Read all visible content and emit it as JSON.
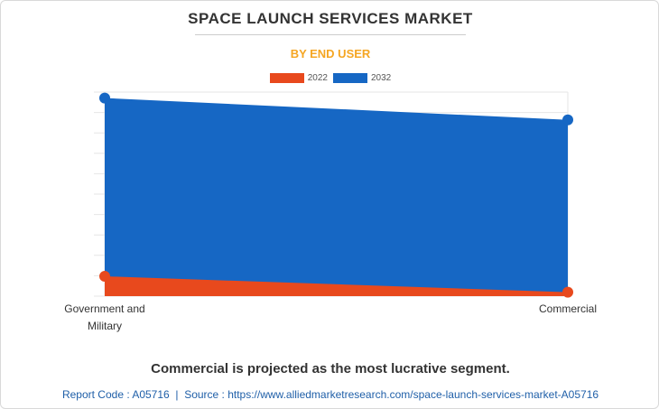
{
  "header": {
    "title": "SPACE LAUNCH SERVICES MARKET",
    "subtitle": "BY END USER"
  },
  "colors": {
    "series_2022": "#e8491d",
    "series_2032": "#1667c4",
    "subtitle": "#f5a623",
    "grid": "#e6e6e6"
  },
  "chart_data": {
    "type": "area",
    "title": "SPACE LAUNCH SERVICES MARKET",
    "subtitle": "BY END USER",
    "categories": [
      "Government and Military",
      "Commercial"
    ],
    "category_lines": [
      [
        "Government and",
        "Military"
      ],
      [
        "Commercial"
      ]
    ],
    "series": [
      {
        "name": "2022",
        "values": [
          1.0,
          0.2
        ]
      },
      {
        "name": "2032",
        "values": [
          10.0,
          8.9
        ]
      }
    ],
    "ylim": [
      0,
      10.3
    ],
    "xlabel": "",
    "ylabel": "",
    "grid": true,
    "legend": "top-center"
  },
  "footer": {
    "tagline": "Commercial is projected as the most lucrative segment.",
    "report_code": "Report Code : A05716",
    "separator": "|",
    "source": "Source : https://www.alliedmarketresearch.com/space-launch-services-market-A05716"
  }
}
